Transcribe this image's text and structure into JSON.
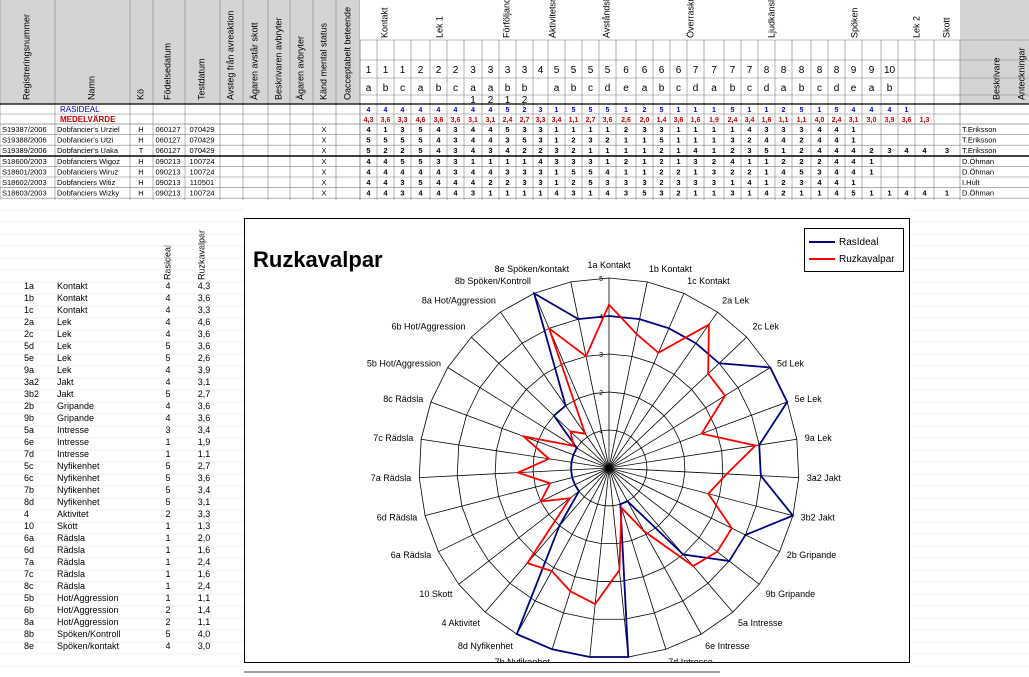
{
  "sheet": {
    "header_cols": [
      "Registreringsnummer",
      "Namn",
      "Kö",
      "Födelsedatum",
      "Testdatum",
      "Avsteg från avreaktion",
      "Ägaren avstår skott",
      "Beskrivaren avbryter",
      "Ägaren avbryter",
      "Känd mental status",
      "Oacceptabelt beteende"
    ],
    "groups": [
      "Kontakt",
      "Lek 1",
      "Förföljande",
      "Aktivitetsnivå",
      "Avståndslek",
      "Överraskning",
      "Ljudkänslighet",
      "Spöken",
      "Lek 2",
      "Skott",
      "Beskrivare",
      "Anteckningar"
    ],
    "row1": [
      "1",
      "1",
      "1",
      "2",
      "2",
      "2",
      "3",
      "3",
      "3",
      "3",
      "4",
      "5",
      "5",
      "5",
      "5",
      "6",
      "6",
      "6",
      "6",
      "7",
      "7",
      "7",
      "7",
      "8",
      "8",
      "8",
      "8",
      "8",
      "9",
      "9",
      "10"
    ],
    "row2": [
      "a",
      "b",
      "c",
      "a",
      "b",
      "c",
      "a",
      "a",
      "b",
      "b",
      "",
      "a",
      "b",
      "c",
      "d",
      "e",
      "a",
      "b",
      "c",
      "d",
      "a",
      "b",
      "c",
      "d",
      "a",
      "b",
      "c",
      "d",
      "e",
      "a",
      "b",
      ""
    ],
    "row3": [
      "",
      "",
      "",
      "",
      "",
      "",
      "1",
      "2",
      "1",
      "2"
    ],
    "rasideal_label": "RASIDEAL",
    "rasideal": [
      "4",
      "4",
      "4",
      "4",
      "4",
      "4",
      "4",
      "4",
      "5",
      "2",
      "3",
      "1",
      "5",
      "5",
      "5",
      "1",
      "2",
      "5",
      "1",
      "1",
      "1",
      "5",
      "1",
      "1",
      "2",
      "5",
      "1",
      "5",
      "4",
      "4",
      "4",
      "1"
    ],
    "medel_label": "MEDELVÄRDE",
    "medel": [
      "4,3",
      "3,6",
      "3,3",
      "4,6",
      "3,6",
      "3,6",
      "3,1",
      "3,1",
      "2,4",
      "2,7",
      "3,3",
      "3,4",
      "1,1",
      "2,7",
      "3,6",
      "2,6",
      "2,0",
      "1,4",
      "3,6",
      "1,6",
      "1,9",
      "2,4",
      "3,4",
      "1,6",
      "1,1",
      "1,1",
      "4,0",
      "2,4",
      "3,1",
      "3,0",
      "3,9",
      "3,6",
      "1,3"
    ],
    "dogs": [
      {
        "reg": "S19387/2006",
        "name": "Dobfancier's Urziel",
        "ko": "H",
        "fodd": "060127",
        "test": "070429",
        "x": "X",
        "vals": [
          "4",
          "1",
          "3",
          "5",
          "4",
          "3",
          "4",
          "4",
          "5",
          "3",
          "3",
          "1",
          "1",
          "1",
          "1",
          "2",
          "3",
          "3",
          "1",
          "1",
          "1",
          "1",
          "4",
          "3",
          "3",
          "3",
          "4",
          "4",
          "1"
        ],
        "beskr": "T.Eriksson"
      },
      {
        "reg": "S19388/2006",
        "name": "Dobfancier's Utzi",
        "ko": "H",
        "fodd": "060127",
        "test": "070429",
        "x": "X",
        "vals": [
          "5",
          "5",
          "5",
          "5",
          "4",
          "3",
          "4",
          "4",
          "3",
          "5",
          "3",
          "1",
          "2",
          "3",
          "2",
          "1",
          "1",
          "5",
          "1",
          "1",
          "1",
          "3",
          "2",
          "4",
          "4",
          "2",
          "4",
          "4",
          "1"
        ],
        "beskr": "T.Eriksson"
      },
      {
        "reg": "S19389/2006",
        "name": "Dobfancier's Uaka",
        "ko": "T",
        "fodd": "060127",
        "test": "070429",
        "x": "X",
        "vals": [
          "5",
          "2",
          "2",
          "5",
          "4",
          "3",
          "4",
          "3",
          "4",
          "2",
          "2",
          "3",
          "2",
          "1",
          "1",
          "1",
          "1",
          "2",
          "1",
          "4",
          "1",
          "2",
          "3",
          "5",
          "1",
          "2",
          "4",
          "4",
          "4",
          "2",
          "3",
          "4",
          "4",
          "3",
          "1"
        ],
        "beskr": "T.Eriksson"
      },
      {
        "reg": "S18600/2003",
        "name": "Dobfanciers Wigoz",
        "ko": "H",
        "fodd": "090213",
        "test": "100724",
        "x": "X",
        "vals": [
          "4",
          "4",
          "5",
          "5",
          "3",
          "3",
          "1",
          "1",
          "1",
          "1",
          "4",
          "3",
          "3",
          "3",
          "1",
          "2",
          "1",
          "2",
          "1",
          "3",
          "2",
          "4",
          "1",
          "1",
          "2",
          "2",
          "2",
          "4",
          "4",
          "1"
        ],
        "beskr": "D.Öhman"
      },
      {
        "reg": "S18601/2003",
        "name": "Dobfanciers Wiruz",
        "ko": "H",
        "fodd": "090213",
        "test": "100724",
        "x": "X",
        "vals": [
          "4",
          "4",
          "4",
          "4",
          "4",
          "3",
          "4",
          "4",
          "3",
          "3",
          "3",
          "1",
          "5",
          "5",
          "4",
          "1",
          "1",
          "2",
          "2",
          "1",
          "3",
          "2",
          "2",
          "1",
          "4",
          "5",
          "3",
          "4",
          "4",
          "1"
        ],
        "beskr": "D.Öhman"
      },
      {
        "reg": "S18602/2003",
        "name": "Dobfanciers Witiz",
        "ko": "H",
        "fodd": "090213",
        "test": "110501",
        "x": "X",
        "vals": [
          "4",
          "4",
          "3",
          "5",
          "4",
          "4",
          "4",
          "2",
          "2",
          "3",
          "3",
          "1",
          "2",
          "5",
          "3",
          "3",
          "3",
          "2",
          "3",
          "3",
          "3",
          "1",
          "4",
          "1",
          "2",
          "3",
          "4",
          "4",
          "1"
        ],
        "beskr": "I.Hult"
      },
      {
        "reg": "S18603/2003",
        "name": "Dobfanciers Wizky",
        "ko": "H",
        "fodd": "090213",
        "test": "100724",
        "x": "X",
        "vals": [
          "4",
          "4",
          "3",
          "4",
          "4",
          "4",
          "3",
          "1",
          "1",
          "1",
          "1",
          "4",
          "3",
          "1",
          "4",
          "3",
          "5",
          "3",
          "2",
          "1",
          "1",
          "3",
          "1",
          "4",
          "2",
          "1",
          "1",
          "4",
          "5",
          "1",
          "1",
          "4",
          "4",
          "1"
        ],
        "beskr": "D.Öhman"
      }
    ],
    "summary_header": [
      "Rasideal",
      "Ruzkavalpar"
    ],
    "summary": [
      [
        "1a",
        "Kontakt",
        "4",
        "4,3"
      ],
      [
        "1b",
        "Kontakt",
        "4",
        "3,6"
      ],
      [
        "1c",
        "Kontakt",
        "4",
        "3,3"
      ],
      [
        "2a",
        "Lek",
        "4",
        "4,6"
      ],
      [
        "2c",
        "Lek",
        "4",
        "3,6"
      ],
      [
        "5d",
        "Lek",
        "5",
        "3,6"
      ],
      [
        "5e",
        "Lek",
        "5",
        "2,6"
      ],
      [
        "9a",
        "Lek",
        "4",
        "3,9"
      ],
      [
        "3a2",
        "Jakt",
        "4",
        "3,1"
      ],
      [
        "3b2",
        "Jakt",
        "5",
        "2,7"
      ],
      [
        "2b",
        "Gripande",
        "4",
        "3,6"
      ],
      [
        "9b",
        "Gripande",
        "4",
        "3,6"
      ],
      [
        "5a",
        "Intresse",
        "3",
        "3,4"
      ],
      [
        "6e",
        "Intresse",
        "1",
        "1,9"
      ],
      [
        "7d",
        "Intresse",
        "1",
        "1,1"
      ],
      [
        "5c",
        "Nyfikenhet",
        "5",
        "2,7"
      ],
      [
        "6c",
        "Nyfikenhet",
        "5",
        "3,6"
      ],
      [
        "7b",
        "Nyfikenhet",
        "5",
        "3,4"
      ],
      [
        "8d",
        "Nyfikenhet",
        "5",
        "3,1"
      ],
      [
        "4",
        "Aktivitet",
        "2",
        "3,3"
      ],
      [
        "10",
        "Skott",
        "1",
        "1,3"
      ],
      [
        "6a",
        "Rädsla",
        "1",
        "2,0"
      ],
      [
        "6d",
        "Rädsla",
        "1",
        "1,6"
      ],
      [
        "7a",
        "Rädsla",
        "1",
        "2,4"
      ],
      [
        "7c",
        "Rädsla",
        "1",
        "1,6"
      ],
      [
        "8c",
        "Rädsla",
        "1",
        "2,4"
      ],
      [
        "5b",
        "Hot/Aggression",
        "1",
        "1,1"
      ],
      [
        "6b",
        "Hot/Aggression",
        "2",
        "1,4"
      ],
      [
        "8a",
        "Hot/Aggression",
        "2",
        "1,1"
      ],
      [
        "8b",
        "Spöken/Kontroll",
        "5",
        "4,0"
      ],
      [
        "8e",
        "Spöken/kontakt",
        "4",
        "3,0"
      ]
    ]
  },
  "chart_data": {
    "type": "radar",
    "title": "Ruzkavalpar",
    "categories": [
      "1a Kontakt",
      "1b Kontakt",
      "1c Kontakt",
      "2a Lek",
      "2c Lek",
      "5d Lek",
      "5e Lek",
      "9a Lek",
      "3a2 Jakt",
      "3b2 Jakt",
      "2b Gripande",
      "9b Gripande",
      "5a Intresse",
      "6e Intresse",
      "7d Intresse",
      "5c Nyfikenhet",
      "6c Nyfikenhet",
      "7b Nyfikenhet",
      "8d Nyfikenhet",
      "4 Aktivitet",
      "10 Skott",
      "6a Rädsla",
      "6d Rädsla",
      "7a Rädsla",
      "7c Rädsla",
      "8c Rädsla",
      "5b Hot/Aggression",
      "6b Hot/Aggression",
      "8a Hot/Aggression",
      "8b Spöken/Kontroll",
      "8e Spöken/kontakt"
    ],
    "rlim": [
      0,
      5
    ],
    "tick_labels": [
      "1",
      "2",
      "3",
      "4",
      "5"
    ],
    "series": [
      {
        "name": "RasIdeal",
        "color": "#000080",
        "values": [
          4,
          4,
          4,
          4,
          4,
          5,
          5,
          4,
          4,
          5,
          4,
          4,
          3,
          1,
          1,
          5,
          5,
          5,
          5,
          2,
          1,
          1,
          1,
          1,
          1,
          1,
          1,
          2,
          2,
          5,
          4
        ]
      },
      {
        "name": "Ruzkavalpar",
        "color": "#ff0000",
        "values": [
          4.3,
          3.6,
          3.3,
          4.6,
          3.6,
          3.6,
          2.6,
          3.9,
          3.1,
          2.7,
          3.6,
          3.6,
          3.4,
          1.9,
          1.1,
          2.7,
          3.6,
          3.4,
          3.1,
          3.3,
          1.3,
          2.0,
          1.6,
          2.4,
          1.6,
          2.4,
          1.1,
          1.4,
          1.1,
          4.0,
          3.0
        ]
      }
    ],
    "legend_position": "top-right",
    "grid": true
  }
}
